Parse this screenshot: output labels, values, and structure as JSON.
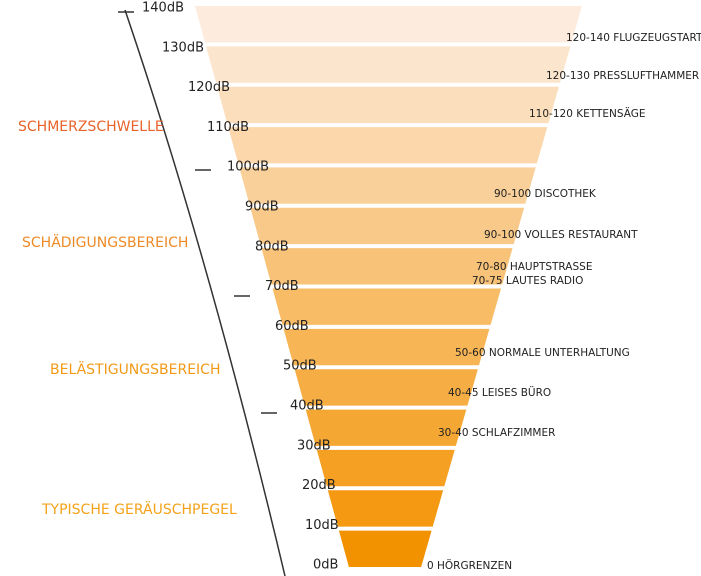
{
  "levels": [
    "140dB",
    "130dB",
    "120dB",
    "110dB",
    "100dB",
    "90dB",
    "80dB",
    "70dB",
    "60dB",
    "50dB",
    "40dB",
    "30dB",
    "20dB",
    "10dB",
    "0dB"
  ],
  "zones": [
    "SCHMERZSCHWELLE",
    "SCHÄDIGUNGSBEREICH",
    "BELÄSTIGUNGSBEREICH",
    "TYPISCHE GERÄUSCHPEGEL"
  ],
  "examples": [
    "120-140 FLUGZEUGSTART",
    "120-130 PRESSLUFTHAMMER",
    "110-120 KETTENSÄGE",
    "90-100 DISCOTHEK",
    "90-100 VOLLES RESTAURANT",
    "70-80 HAUPTSTRASSE",
    "70-75 LAUTES RADIO",
    "50-60 NORMALE UNTERHALTUNG",
    "40-45 LEISES BÜRO",
    "30-40 SCHLAFZIMMER",
    "0 HÖRGRENZEN"
  ]
}
